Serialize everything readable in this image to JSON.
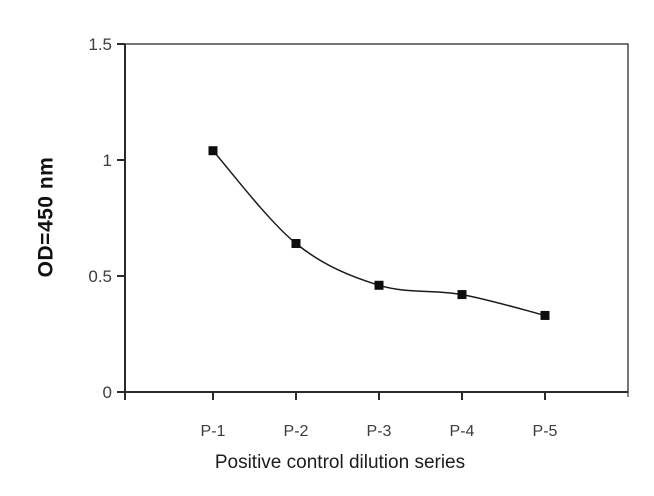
{
  "chart_data": {
    "type": "line",
    "title": "",
    "xlabel": "Positive control dilution series",
    "ylabel": "OD=450 nm",
    "categories": [
      "P-1",
      "P-2",
      "P-3",
      "P-4",
      "P-5"
    ],
    "series": [
      {
        "name": "Positive control dilution series",
        "values": [
          1.04,
          0.64,
          0.46,
          0.42,
          0.33
        ]
      }
    ],
    "ylim": [
      0,
      1.5
    ],
    "yticks": [
      0,
      0.5,
      1,
      1.5
    ],
    "ytick_labels": [
      "0",
      "0.5",
      "1",
      "1.5"
    ],
    "grid": false,
    "legend": false,
    "line_style": "smooth",
    "marker": "square",
    "colors": {
      "line": "#1b1b1b",
      "marker": "#0d0d0d",
      "axis": "#2a2a2a",
      "border": "#3a3a3a",
      "tick_text": "#3d3d3d",
      "background": "#ffffff"
    }
  }
}
